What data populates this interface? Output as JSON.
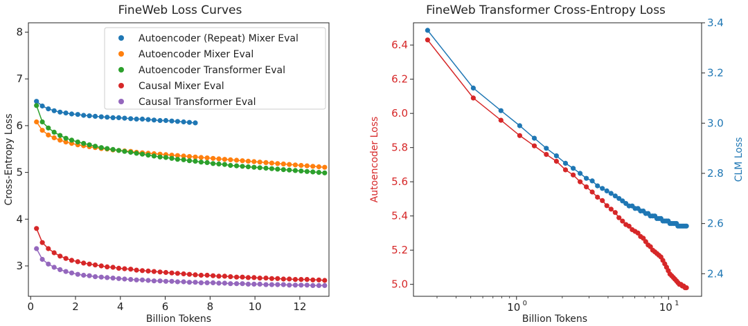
{
  "chart_data": [
    {
      "type": "line",
      "title": "FineWeb Loss Curves",
      "xlabel": "Billion Tokens",
      "ylabel": "Cross-Entropy Loss",
      "xlim": [
        -0.1,
        13.3
      ],
      "ylim": [
        2.35,
        8.2
      ],
      "xticks": [
        0,
        2,
        4,
        6,
        8,
        10,
        12
      ],
      "yticks": [
        3,
        4,
        5,
        6,
        7,
        8
      ],
      "legend_position": "upper-right",
      "series": [
        {
          "name": "Autoencoder (Repeat) Mixer Eval",
          "color": "#1f77b4",
          "x": [
            0.26,
            0.52,
            0.79,
            1.05,
            1.31,
            1.57,
            1.83,
            2.1,
            2.36,
            2.62,
            2.88,
            3.15,
            3.41,
            3.67,
            3.93,
            4.19,
            4.46,
            4.72,
            4.98,
            5.24,
            5.5,
            5.77,
            6.03,
            6.29,
            6.55,
            6.82,
            7.08,
            7.34
          ],
          "y": [
            6.52,
            6.42,
            6.36,
            6.32,
            6.29,
            6.27,
            6.25,
            6.24,
            6.22,
            6.21,
            6.2,
            6.19,
            6.18,
            6.17,
            6.17,
            6.16,
            6.15,
            6.14,
            6.14,
            6.13,
            6.12,
            6.11,
            6.11,
            6.1,
            6.09,
            6.08,
            6.07,
            6.06
          ]
        },
        {
          "name": "Autoencoder Mixer Eval",
          "color": "#ff7f0e",
          "x": [
            0.26,
            0.52,
            0.79,
            1.05,
            1.31,
            1.57,
            1.83,
            2.1,
            2.36,
            2.62,
            2.88,
            3.15,
            3.41,
            3.67,
            3.93,
            4.19,
            4.46,
            4.72,
            4.98,
            5.24,
            5.5,
            5.77,
            6.03,
            6.29,
            6.55,
            6.82,
            7.08,
            7.34,
            7.6,
            7.87,
            8.13,
            8.39,
            8.65,
            8.91,
            9.18,
            9.44,
            9.7,
            9.96,
            10.22,
            10.49,
            10.75,
            11.01,
            11.27,
            11.53,
            11.8,
            12.06,
            12.32,
            12.58,
            12.85,
            13.11
          ],
          "y": [
            6.08,
            5.9,
            5.8,
            5.74,
            5.69,
            5.65,
            5.62,
            5.59,
            5.57,
            5.55,
            5.53,
            5.51,
            5.5,
            5.48,
            5.47,
            5.46,
            5.45,
            5.43,
            5.42,
            5.41,
            5.4,
            5.39,
            5.38,
            5.37,
            5.36,
            5.35,
            5.34,
            5.33,
            5.32,
            5.31,
            5.3,
            5.29,
            5.28,
            5.27,
            5.26,
            5.25,
            5.24,
            5.23,
            5.22,
            5.21,
            5.2,
            5.19,
            5.18,
            5.17,
            5.16,
            5.15,
            5.14,
            5.13,
            5.12,
            5.11
          ]
        },
        {
          "name": "Autoencoder Transformer Eval",
          "color": "#2ca02c",
          "x": [
            0.26,
            0.52,
            0.79,
            1.05,
            1.31,
            1.57,
            1.83,
            2.1,
            2.36,
            2.62,
            2.88,
            3.15,
            3.41,
            3.67,
            3.93,
            4.19,
            4.46,
            4.72,
            4.98,
            5.24,
            5.5,
            5.77,
            6.03,
            6.29,
            6.55,
            6.82,
            7.08,
            7.34,
            7.6,
            7.87,
            8.13,
            8.39,
            8.65,
            8.91,
            9.18,
            9.44,
            9.7,
            9.96,
            10.22,
            10.49,
            10.75,
            11.01,
            11.27,
            11.53,
            11.8,
            12.06,
            12.32,
            12.58,
            12.85,
            13.11
          ],
          "y": [
            6.43,
            6.08,
            5.95,
            5.86,
            5.79,
            5.73,
            5.69,
            5.65,
            5.62,
            5.59,
            5.56,
            5.53,
            5.51,
            5.49,
            5.47,
            5.45,
            5.43,
            5.41,
            5.39,
            5.37,
            5.35,
            5.33,
            5.32,
            5.3,
            5.28,
            5.27,
            5.25,
            5.24,
            5.22,
            5.21,
            5.19,
            5.18,
            5.17,
            5.15,
            5.14,
            5.13,
            5.12,
            5.11,
            5.1,
            5.09,
            5.08,
            5.07,
            5.06,
            5.05,
            5.04,
            5.03,
            5.02,
            5.01,
            5.0,
            4.99
          ]
        },
        {
          "name": "Causal Mixer Eval",
          "color": "#d62728",
          "x": [
            0.26,
            0.52,
            0.79,
            1.05,
            1.31,
            1.57,
            1.83,
            2.1,
            2.36,
            2.62,
            2.88,
            3.15,
            3.41,
            3.67,
            3.93,
            4.19,
            4.46,
            4.72,
            4.98,
            5.24,
            5.5,
            5.77,
            6.03,
            6.29,
            6.55,
            6.82,
            7.08,
            7.34,
            7.6,
            7.87,
            8.13,
            8.39,
            8.65,
            8.91,
            9.18,
            9.44,
            9.7,
            9.96,
            10.22,
            10.49,
            10.75,
            11.01,
            11.27,
            11.53,
            11.8,
            12.06,
            12.32,
            12.58,
            12.85,
            13.11
          ],
          "y": [
            3.8,
            3.5,
            3.37,
            3.28,
            3.21,
            3.16,
            3.12,
            3.09,
            3.06,
            3.04,
            3.02,
            3.0,
            2.98,
            2.97,
            2.95,
            2.94,
            2.93,
            2.91,
            2.9,
            2.89,
            2.88,
            2.87,
            2.86,
            2.85,
            2.84,
            2.83,
            2.82,
            2.81,
            2.8,
            2.8,
            2.79,
            2.78,
            2.78,
            2.77,
            2.76,
            2.76,
            2.75,
            2.75,
            2.74,
            2.74,
            2.73,
            2.73,
            2.72,
            2.72,
            2.71,
            2.71,
            2.71,
            2.7,
            2.7,
            2.69
          ]
        },
        {
          "name": "Causal Transformer Eval",
          "color": "#9467bd",
          "x": [
            0.26,
            0.52,
            0.79,
            1.05,
            1.31,
            1.57,
            1.83,
            2.1,
            2.36,
            2.62,
            2.88,
            3.15,
            3.41,
            3.67,
            3.93,
            4.19,
            4.46,
            4.72,
            4.98,
            5.24,
            5.5,
            5.77,
            6.03,
            6.29,
            6.55,
            6.82,
            7.08,
            7.34,
            7.6,
            7.87,
            8.13,
            8.39,
            8.65,
            8.91,
            9.18,
            9.44,
            9.7,
            9.96,
            10.22,
            10.49,
            10.75,
            11.01,
            11.27,
            11.53,
            11.8,
            12.06,
            12.32,
            12.58,
            12.85,
            13.11
          ],
          "y": [
            3.37,
            3.14,
            3.04,
            2.97,
            2.92,
            2.88,
            2.85,
            2.82,
            2.8,
            2.79,
            2.77,
            2.76,
            2.75,
            2.74,
            2.73,
            2.72,
            2.71,
            2.7,
            2.7,
            2.69,
            2.68,
            2.68,
            2.67,
            2.67,
            2.66,
            2.66,
            2.65,
            2.65,
            2.64,
            2.64,
            2.64,
            2.63,
            2.63,
            2.62,
            2.62,
            2.62,
            2.61,
            2.61,
            2.61,
            2.6,
            2.6,
            2.6,
            2.6,
            2.59,
            2.59,
            2.59,
            2.59,
            2.58,
            2.58,
            2.58
          ]
        }
      ]
    },
    {
      "type": "line",
      "title": "FineWeb Transformer Cross-Entropy Loss",
      "xlabel": "Billion Tokens",
      "xscale": "log",
      "xlim": [
        0.21,
        16.5
      ],
      "xticks": [
        1,
        10
      ],
      "xtick_labels": [
        {
          "base": "10",
          "exp": "0"
        },
        {
          "base": "10",
          "exp": "1"
        }
      ],
      "ylabel_left": "Autoencoder Loss",
      "ylabel_right": "CLM Loss",
      "ylim_left": [
        4.93,
        6.53
      ],
      "ylim_right": [
        2.31,
        3.4
      ],
      "yticks_left": [
        5.0,
        5.2,
        5.4,
        5.6,
        5.8,
        6.0,
        6.2,
        6.4
      ],
      "yticks_right": [
        2.4,
        2.6,
        2.8,
        3.0,
        3.2,
        3.4
      ],
      "left_axis_color": "#d62728",
      "right_axis_color": "#1f77b4",
      "series": [
        {
          "axis": "left",
          "color": "#d62728",
          "x": [
            0.26,
            0.52,
            0.79,
            1.05,
            1.31,
            1.57,
            1.83,
            2.1,
            2.36,
            2.62,
            2.88,
            3.15,
            3.41,
            3.67,
            3.93,
            4.19,
            4.46,
            4.72,
            4.98,
            5.24,
            5.5,
            5.77,
            6.03,
            6.29,
            6.55,
            6.82,
            7.08,
            7.34,
            7.6,
            7.87,
            8.13,
            8.39,
            8.65,
            8.91,
            9.18,
            9.44,
            9.7,
            9.96,
            10.22,
            10.49,
            10.75,
            11.01,
            11.27,
            11.53,
            11.8,
            12.06,
            12.32,
            12.58,
            12.85,
            13.11
          ],
          "y": [
            6.43,
            6.09,
            5.96,
            5.87,
            5.81,
            5.76,
            5.72,
            5.67,
            5.64,
            5.6,
            5.57,
            5.54,
            5.51,
            5.49,
            5.46,
            5.44,
            5.42,
            5.39,
            5.37,
            5.35,
            5.34,
            5.32,
            5.31,
            5.3,
            5.28,
            5.27,
            5.25,
            5.23,
            5.22,
            5.2,
            5.19,
            5.18,
            5.17,
            5.16,
            5.14,
            5.12,
            5.1,
            5.08,
            5.06,
            5.05,
            5.04,
            5.03,
            5.02,
            5.01,
            5.0,
            5.0,
            4.99,
            4.99,
            4.98,
            4.98
          ]
        },
        {
          "axis": "right",
          "color": "#1f77b4",
          "x": [
            0.26,
            0.52,
            0.79,
            1.05,
            1.31,
            1.57,
            1.83,
            2.1,
            2.36,
            2.62,
            2.88,
            3.15,
            3.41,
            3.67,
            3.93,
            4.19,
            4.46,
            4.72,
            4.98,
            5.24,
            5.5,
            5.77,
            6.03,
            6.29,
            6.55,
            6.82,
            7.08,
            7.34,
            7.6,
            7.87,
            8.13,
            8.39,
            8.65,
            8.91,
            9.18,
            9.44,
            9.7,
            9.96,
            10.22,
            10.49,
            10.75,
            11.01,
            11.27,
            11.53,
            11.8,
            12.06,
            12.32,
            12.58,
            12.85,
            13.11
          ],
          "y": [
            3.37,
            3.14,
            3.05,
            2.99,
            2.94,
            2.9,
            2.87,
            2.84,
            2.82,
            2.8,
            2.78,
            2.77,
            2.75,
            2.74,
            2.73,
            2.72,
            2.71,
            2.7,
            2.69,
            2.68,
            2.67,
            2.67,
            2.66,
            2.66,
            2.65,
            2.65,
            2.64,
            2.64,
            2.63,
            2.63,
            2.63,
            2.62,
            2.62,
            2.62,
            2.61,
            2.61,
            2.61,
            2.61,
            2.6,
            2.6,
            2.6,
            2.6,
            2.6,
            2.59,
            2.59,
            2.59,
            2.59,
            2.59,
            2.59,
            2.59
          ]
        }
      ]
    }
  ]
}
